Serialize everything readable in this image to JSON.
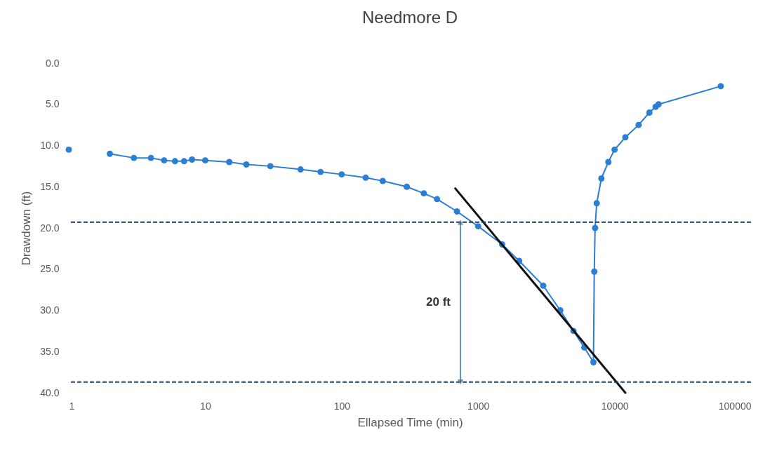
{
  "chart_data": {
    "type": "line",
    "title": "Needmore D",
    "xlabel": "Ellapsed Time (min)",
    "ylabel": "Drawdown (ft)",
    "log": "x",
    "grid": false,
    "marker": "circle",
    "xlim": [
      1,
      100000
    ],
    "xticks": [
      1,
      10,
      100,
      1000,
      10000,
      100000
    ],
    "ylim": [
      40,
      0
    ],
    "yticks": [
      {
        "value": 0,
        "label": "0.0"
      },
      {
        "value": 5,
        "label": "5.0"
      },
      {
        "value": 10,
        "label": "10.0"
      },
      {
        "value": 15,
        "label": "15.0"
      },
      {
        "value": 20,
        "label": "20.0"
      },
      {
        "value": 25,
        "label": "25.0"
      },
      {
        "value": 30,
        "label": "30.0"
      },
      {
        "value": 35,
        "label": "35.0"
      },
      {
        "value": 40,
        "label": "40.0"
      }
    ],
    "series": [
      {
        "color": "#2a7fd4",
        "x": [
          1,
          1.5,
          2,
          3,
          4,
          5,
          6,
          7,
          8,
          10,
          15,
          20,
          30,
          50,
          70,
          100,
          150,
          200,
          300,
          400,
          500,
          700,
          1000,
          1500,
          2000,
          3000,
          4000,
          5000,
          6000,
          7000,
          7100,
          7200,
          7400,
          8000,
          9000,
          10000,
          12000,
          15000,
          18000,
          20000,
          21000,
          60000
        ],
        "values": [
          10.5,
          null,
          11.0,
          11.5,
          11.5,
          11.8,
          11.9,
          11.9,
          11.7,
          11.8,
          12.0,
          12.3,
          12.5,
          12.9,
          13.2,
          13.5,
          13.9,
          14.3,
          15.0,
          15.8,
          16.5,
          18.0,
          19.8,
          22.0,
          24.0,
          27.0,
          30.0,
          32.5,
          34.5,
          36.3,
          25.3,
          20.0,
          17.0,
          14.0,
          12.0,
          10.5,
          9.0,
          7.5,
          6.0,
          5.3,
          5.0,
          2.8
        ]
      },
      {
        "type": "line",
        "marker": "none",
        "color": "#111111",
        "x": [
          680,
          12000
        ],
        "values": [
          15.2,
          40.0
        ]
      }
    ],
    "ref_lines": [
      {
        "axis": "y",
        "value": 19.3,
        "color": "#1f3a5f",
        "line_style": "dashed"
      },
      {
        "axis": "y",
        "value": 38.7,
        "color": "#1f3a5f",
        "line_style": "dashed"
      }
    ],
    "annotations": [
      "20 ft"
    ]
  }
}
